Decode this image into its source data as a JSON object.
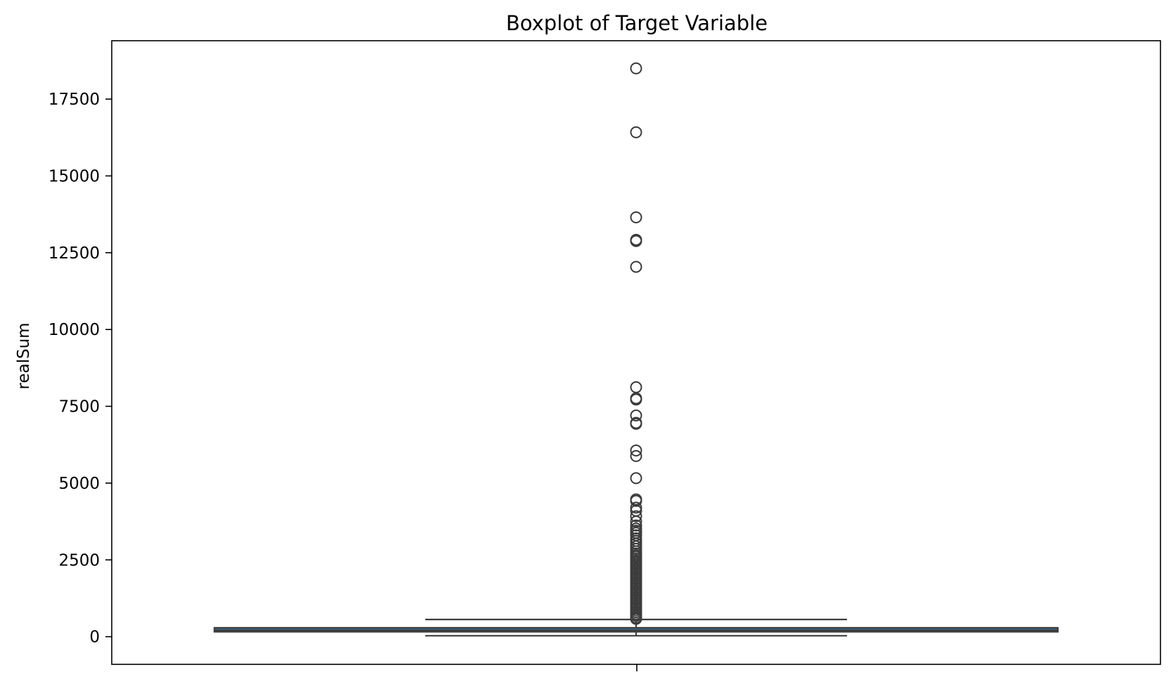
{
  "chart_data": {
    "type": "box",
    "title": "Boxplot of Target Variable",
    "xlabel": "",
    "ylabel": "realSum",
    "ylim": [
      -900,
      19400
    ],
    "yticks": [
      0,
      2500,
      5000,
      7500,
      10000,
      12500,
      15000,
      17500
    ],
    "grid": false,
    "legend": "none",
    "box": {
      "q1": 160,
      "median": 210,
      "q3": 290,
      "whisker_low": 30,
      "whisker_high": 560
    },
    "outliers": [
      18500,
      16420,
      13650,
      12920,
      12880,
      12040,
      8120,
      7760,
      7720,
      7200,
      6960,
      6930,
      6060,
      5880,
      5160,
      4470,
      4420,
      4200,
      4100,
      3920,
      3750,
      3620,
      3520,
      3450,
      3380,
      3300,
      3200,
      3120,
      3030,
      2940,
      2860,
      2780,
      2710,
      2650,
      2600,
      2540,
      2480,
      2420,
      2360,
      2300,
      2240,
      2180,
      2120,
      2060,
      2000,
      1940,
      1880,
      1820,
      1760,
      1700,
      1640,
      1580,
      1520,
      1460,
      1400,
      1340,
      1280,
      1220,
      1160,
      1100,
      1040,
      980,
      920,
      860,
      800,
      740,
      680,
      620,
      580
    ],
    "colors": {
      "box_fill": "#3f6e8f",
      "line": "#3c3c3c",
      "outlier_stroke": "#3c3c3c"
    }
  }
}
